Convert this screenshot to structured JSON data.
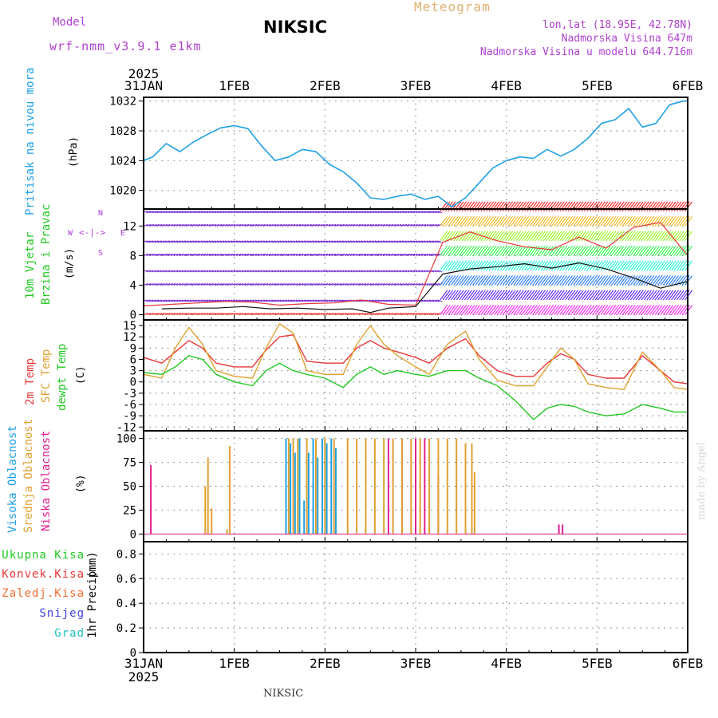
{
  "header": {
    "model_label": "Model",
    "model_name": "wrf-nmm_v3.9.1  e1km",
    "station_title": "NIKSIC",
    "product": "Meteogram",
    "lonlat": "lon,lat (18.95E, 42.78N)",
    "altitude": "Nadmorska Visina 647m",
    "model_altitude": "Nadmorska Visina u modelu 644.716m"
  },
  "footer": {
    "station": "NIKSIC",
    "credit": "made by Angel"
  },
  "colors": {
    "pressure": "#1ea0e6",
    "temp2m": "#e83838",
    "sfc": "#e0a030",
    "dewpt": "#22c822",
    "low": "#e02090",
    "mid": "#e0a030",
    "high": "#1ea0e6",
    "rose": "#b040e0"
  },
  "time_axis": {
    "year": "2025",
    "labels": [
      "31JAN",
      "1FEB",
      "2FEB",
      "3FEB",
      "4FEB",
      "5FEB",
      "6FEB"
    ],
    "range_days": [
      0,
      6
    ]
  },
  "chart_data": [
    {
      "type": "line",
      "id": "pressure",
      "ylabel": "Pritisak na nivou mora",
      "unit": "(hPa)",
      "ylim": [
        1017.5,
        1032.5
      ],
      "yticks": [
        1020,
        1024,
        1028,
        1032
      ],
      "grid": true,
      "series": [
        {
          "color": "#1ea0e6",
          "x": [
            0,
            0.1,
            0.25,
            0.4,
            0.55,
            0.7,
            0.85,
            1.0,
            1.15,
            1.3,
            1.45,
            1.6,
            1.75,
            1.9,
            2.05,
            2.2,
            2.35,
            2.5,
            2.65,
            2.8,
            2.95,
            3.1,
            3.25,
            3.4,
            3.55,
            3.7,
            3.85,
            4.0,
            4.15,
            4.3,
            4.45,
            4.6,
            4.75,
            4.9,
            5.05,
            5.2,
            5.35,
            5.5,
            5.65,
            5.8,
            5.95,
            6.0
          ],
          "y": [
            1024,
            1024.5,
            1026.3,
            1025.2,
            1026.5,
            1027.5,
            1028.4,
            1028.7,
            1028.3,
            1026,
            1024,
            1024.5,
            1025.5,
            1025.2,
            1023.5,
            1022.5,
            1021,
            1019,
            1018.8,
            1019.2,
            1019.5,
            1018.8,
            1019.2,
            1017.8,
            1019,
            1021,
            1023,
            1024,
            1024.5,
            1024.3,
            1025.5,
            1024.6,
            1025.5,
            1027,
            1029,
            1029.5,
            1031,
            1028.5,
            1029,
            1031.5,
            1032,
            1032
          ]
        }
      ]
    },
    {
      "type": "vector",
      "id": "wind",
      "ylabel_line1": "10m Vjetar",
      "ylabel_line2": "Brzina i Pravac",
      "unit": "(m/s)",
      "compass": {
        "n": "N",
        "s": "S",
        "w": "W",
        "e": "E"
      },
      "ylim": [
        -0.7,
        14.3
      ],
      "yticks": [
        0,
        4,
        8,
        12
      ],
      "grid": true,
      "speed_series": {
        "color": "#111111",
        "x": [
          0.2,
          0.5,
          0.8,
          1.1,
          1.4,
          1.7,
          2.0,
          2.3,
          2.5,
          2.7,
          3.0,
          3.3,
          3.6,
          3.9,
          4.2,
          4.5,
          4.8,
          5.1,
          5.4,
          5.7,
          6.0
        ],
        "y": [
          0.8,
          0.9,
          0.9,
          1.1,
          0.8,
          0.9,
          0.7,
          0.8,
          0.3,
          0.9,
          1.1,
          5.5,
          6.2,
          6.5,
          6.9,
          6.3,
          7.0,
          6.2,
          5.0,
          3.6,
          4.5
        ]
      },
      "gust_series": {
        "color": "#e83838",
        "x": [
          0,
          0.3,
          0.6,
          0.9,
          1.2,
          1.5,
          1.8,
          2.1,
          2.4,
          2.7,
          3.0,
          3.3,
          3.6,
          3.9,
          4.2,
          4.5,
          4.8,
          5.1,
          5.4,
          5.7,
          6.0
        ],
        "y": [
          1.2,
          1.4,
          1.6,
          1.8,
          1.7,
          1.3,
          1.5,
          1.6,
          2.0,
          1.4,
          1.3,
          9.8,
          11.2,
          10.0,
          9.2,
          8.8,
          10.5,
          9.0,
          11.8,
          12.5,
          8.0
        ]
      }
    },
    {
      "type": "line",
      "id": "temperature",
      "ylabel_line1": "2m Temp",
      "ylabel_line2": "SFC Temp",
      "ylabel_line3": "dewpt Temp",
      "unit": "(C)",
      "ylim": [
        -13,
        16.5
      ],
      "yticks": [
        -12,
        -9,
        -6,
        -3,
        0,
        3,
        6,
        9,
        12,
        15
      ],
      "grid": true,
      "series": [
        {
          "id": "t2m",
          "color": "#e83838",
          "x": [
            0,
            0.2,
            0.35,
            0.5,
            0.65,
            0.8,
            1.0,
            1.2,
            1.35,
            1.5,
            1.65,
            1.8,
            2.0,
            2.2,
            2.35,
            2.5,
            2.65,
            2.8,
            3.0,
            3.15,
            3.35,
            3.55,
            3.7,
            3.9,
            4.1,
            4.3,
            4.45,
            4.6,
            4.75,
            4.9,
            5.1,
            5.3,
            5.5,
            5.7,
            5.85,
            6.0
          ],
          "y": [
            6.5,
            5,
            8,
            11,
            9,
            5,
            4,
            4,
            8.5,
            12,
            12.5,
            5.5,
            5,
            5,
            9,
            11,
            9,
            8,
            6.5,
            5,
            9,
            11.5,
            7,
            3,
            1.5,
            1.5,
            5,
            7.5,
            6,
            2,
            1,
            1,
            7,
            3,
            0,
            -0.5
          ]
        },
        {
          "id": "sfc",
          "color": "#e0a030",
          "x": [
            0,
            0.2,
            0.35,
            0.5,
            0.65,
            0.8,
            1.0,
            1.2,
            1.35,
            1.5,
            1.65,
            1.8,
            2.0,
            2.2,
            2.35,
            2.5,
            2.65,
            2.8,
            3.0,
            3.15,
            3.35,
            3.55,
            3.7,
            3.9,
            4.1,
            4.3,
            4.45,
            4.6,
            4.75,
            4.9,
            5.1,
            5.3,
            5.5,
            5.7,
            5.85,
            6.0
          ],
          "y": [
            2,
            1,
            9,
            14.5,
            10,
            3,
            1.5,
            1,
            9,
            15.5,
            13,
            3,
            2,
            2,
            10,
            15,
            10,
            7,
            4,
            2,
            10,
            13.5,
            6,
            0.5,
            -1,
            -1,
            4,
            9,
            6,
            -0.5,
            -1.5,
            -2,
            8,
            3,
            -1.5,
            -2
          ]
        },
        {
          "id": "dewpt",
          "color": "#22c822",
          "x": [
            0,
            0.2,
            0.35,
            0.5,
            0.65,
            0.8,
            1.0,
            1.2,
            1.35,
            1.5,
            1.65,
            1.8,
            2.0,
            2.2,
            2.35,
            2.5,
            2.65,
            2.8,
            3.0,
            3.15,
            3.35,
            3.55,
            3.7,
            3.9,
            4.1,
            4.3,
            4.45,
            4.6,
            4.75,
            4.9,
            5.1,
            5.3,
            5.5,
            5.7,
            5.85,
            6.0
          ],
          "y": [
            2.5,
            2,
            4,
            7,
            6,
            2,
            0,
            -1,
            3,
            5,
            3,
            2,
            1,
            -1.5,
            2,
            4,
            2,
            3,
            2,
            1.5,
            3,
            3,
            1,
            -1,
            -5,
            -10,
            -7,
            -6,
            -6.5,
            -8,
            -9,
            -8.5,
            -6,
            -7,
            -8,
            -8
          ]
        }
      ]
    },
    {
      "type": "bar",
      "id": "cloud",
      "ylabel_line1": "Visoka Oblacnost",
      "ylabel_line2": "Srednja Oblacnost",
      "ylabel_line3": "Niska Oblacnost",
      "unit": "(%)",
      "ylim": [
        -8,
        108
      ],
      "yticks": [
        0,
        25,
        50,
        75,
        100
      ],
      "grid": true,
      "series": [
        {
          "id": "low",
          "color": "#e02090",
          "x": [
            0.08,
            2.7,
            2.85,
            3.0,
            3.1,
            3.25,
            4.58,
            4.62
          ],
          "values": [
            72,
            100,
            100,
            100,
            100,
            60,
            10,
            10
          ]
        },
        {
          "id": "mid",
          "color": "#e0a030",
          "x": [
            0.68,
            0.71,
            0.75,
            0.92,
            0.95,
            1.6,
            1.65,
            1.7,
            1.8,
            1.9,
            2.0,
            2.1,
            2.25,
            2.35,
            2.45,
            2.55,
            2.65,
            2.75,
            2.85,
            2.95,
            3.05,
            3.15,
            3.25,
            3.35,
            3.45,
            3.55,
            3.62,
            3.65
          ],
          "values": [
            50,
            80,
            27,
            5,
            92,
            100,
            100,
            100,
            100,
            100,
            100,
            100,
            100,
            100,
            100,
            100,
            100,
            100,
            100,
            100,
            100,
            100,
            100,
            100,
            100,
            95,
            95,
            65
          ]
        },
        {
          "id": "high",
          "color": "#1ea0e6",
          "x": [
            1.57,
            1.62,
            1.67,
            1.72,
            1.77,
            1.82,
            1.87,
            1.92,
            1.97,
            2.02,
            2.07,
            2.12
          ],
          "values": [
            100,
            95,
            85,
            100,
            35,
            85,
            100,
            80,
            100,
            95,
            100,
            90
          ]
        }
      ]
    },
    {
      "type": "line",
      "id": "precip",
      "ylabel": "1hr Precip",
      "unit": "(mm)",
      "legend": [
        "Ukupna Kisa",
        "Konvek.Kisa",
        "Zaledj.Kisa",
        "Snijeg",
        "Grad"
      ],
      "legend_colors": [
        "#22c822",
        "#e83838",
        "#f07030",
        "#4040e0",
        "#22c0c0"
      ],
      "ylim": [
        0,
        0.9
      ],
      "yticks": [
        0,
        0.2,
        0.4,
        0.6,
        0.8
      ],
      "grid": true,
      "series": [
        {
          "color": "#22c822",
          "x": [
            0,
            6
          ],
          "y": [
            0,
            0
          ]
        }
      ]
    }
  ]
}
